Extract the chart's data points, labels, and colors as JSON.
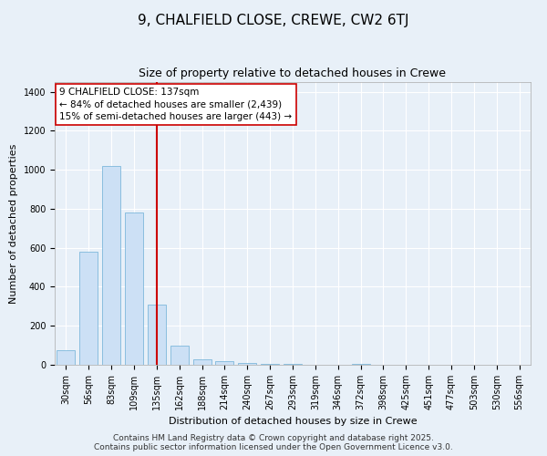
{
  "title": "9, CHALFIELD CLOSE, CREWE, CW2 6TJ",
  "subtitle": "Size of property relative to detached houses in Crewe",
  "xlabel": "Distribution of detached houses by size in Crewe",
  "ylabel": "Number of detached properties",
  "categories": [
    "30sqm",
    "56sqm",
    "83sqm",
    "109sqm",
    "135sqm",
    "162sqm",
    "188sqm",
    "214sqm",
    "240sqm",
    "267sqm",
    "293sqm",
    "319sqm",
    "346sqm",
    "372sqm",
    "398sqm",
    "425sqm",
    "451sqm",
    "477sqm",
    "503sqm",
    "530sqm",
    "556sqm"
  ],
  "values": [
    75,
    580,
    1020,
    780,
    310,
    100,
    30,
    20,
    10,
    5,
    5,
    1,
    0,
    5,
    0,
    0,
    0,
    0,
    0,
    0,
    0
  ],
  "bar_color": "#cce0f5",
  "bar_edge_color": "#6baed6",
  "vline_x": 4,
  "vline_color": "#cc0000",
  "annotation_text": "9 CHALFIELD CLOSE: 137sqm\n← 84% of detached houses are smaller (2,439)\n15% of semi-detached houses are larger (443) →",
  "annotation_box_color": "#ffffff",
  "annotation_box_edge": "#cc0000",
  "ylim": [
    0,
    1450
  ],
  "yticks": [
    0,
    200,
    400,
    600,
    800,
    1000,
    1200,
    1400
  ],
  "footer_line1": "Contains HM Land Registry data © Crown copyright and database right 2025.",
  "footer_line2": "Contains public sector information licensed under the Open Government Licence v3.0.",
  "bg_color": "#e8f0f8",
  "plot_bg_color": "#e8f0f8",
  "grid_color": "#ffffff",
  "title_fontsize": 11,
  "subtitle_fontsize": 9,
  "axis_label_fontsize": 8,
  "tick_fontsize": 7,
  "annotation_fontsize": 7.5,
  "footer_fontsize": 6.5
}
